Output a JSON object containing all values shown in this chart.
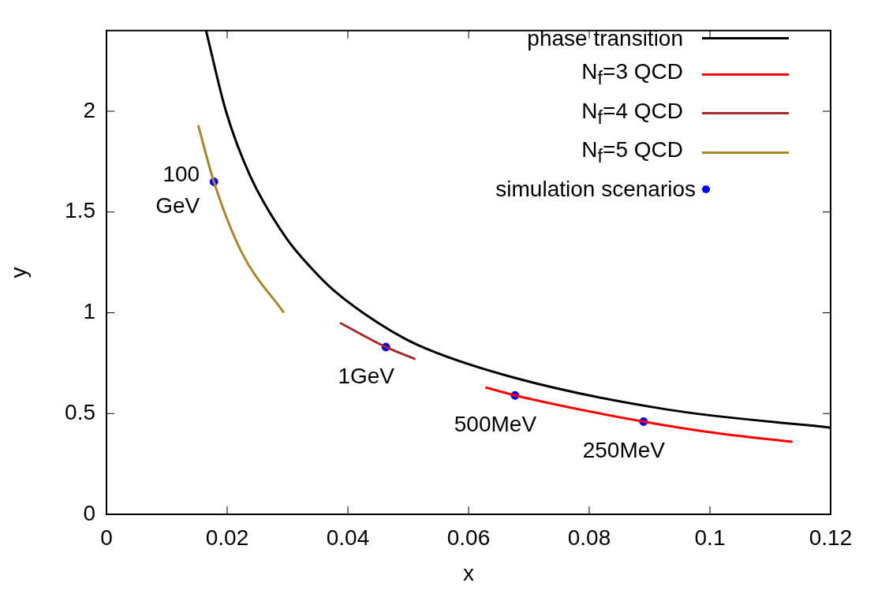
{
  "chart_data": {
    "type": "line",
    "xlabel": "x",
    "ylabel": "y",
    "xlim": [
      0,
      0.12
    ],
    "ylim": [
      0,
      2.4
    ],
    "xticks": [
      0,
      0.02,
      0.04,
      0.06,
      0.08,
      0.1,
      0.12
    ],
    "yticks": [
      0,
      0.5,
      1,
      1.5,
      2
    ],
    "legend": "top right",
    "grid": false,
    "marker": "none",
    "line_style": "solid",
    "series": [
      {
        "name": "phase transition",
        "color": "#000000",
        "x": [
          0.0165,
          0.0198,
          0.0238,
          0.0298,
          0.034,
          0.0377,
          0.045,
          0.0516,
          0.0673,
          0.0929,
          0.12
        ],
        "values": [
          2.4,
          2.0,
          1.68,
          1.37,
          1.22,
          1.11,
          0.95,
          0.84,
          0.68,
          0.52,
          0.43
        ]
      },
      {
        "name": "N$_{f}$=3 QCD",
        "color": "#ff0000",
        "x": [
          0.0628,
          0.0677,
          0.089,
          0.1018,
          0.1137
        ],
        "values": [
          0.63,
          0.59,
          0.46,
          0.4,
          0.36
        ]
      },
      {
        "name": "N$_{f}$=4 QCD",
        "color": "#a52a2a",
        "x": [
          0.0387,
          0.0463,
          0.0512
        ],
        "values": [
          0.95,
          0.83,
          0.77
        ]
      },
      {
        "name": "N$_{f}$=5 QCD",
        "color": "#a8862a",
        "x": [
          0.0152,
          0.0178,
          0.0224,
          0.0294
        ],
        "values": [
          1.93,
          1.65,
          1.3,
          1.0
        ]
      },
      {
        "name": "simulation scenarios",
        "type": "scatter",
        "marker": "circle",
        "color": "#0000ff",
        "x": [
          0.0178,
          0.0463,
          0.0677,
          0.089
        ],
        "values": [
          1.65,
          0.83,
          0.59,
          0.46
        ]
      }
    ],
    "annotations": [
      {
        "text": "100\nGeV",
        "x": 0.0178,
        "y": 1.65
      },
      {
        "text": "1GeV",
        "x": 0.0463,
        "y": 0.83
      },
      {
        "text": "500MeV",
        "x": 0.0677,
        "y": 0.59
      },
      {
        "text": "250MeV",
        "x": 0.089,
        "y": 0.46
      }
    ]
  }
}
